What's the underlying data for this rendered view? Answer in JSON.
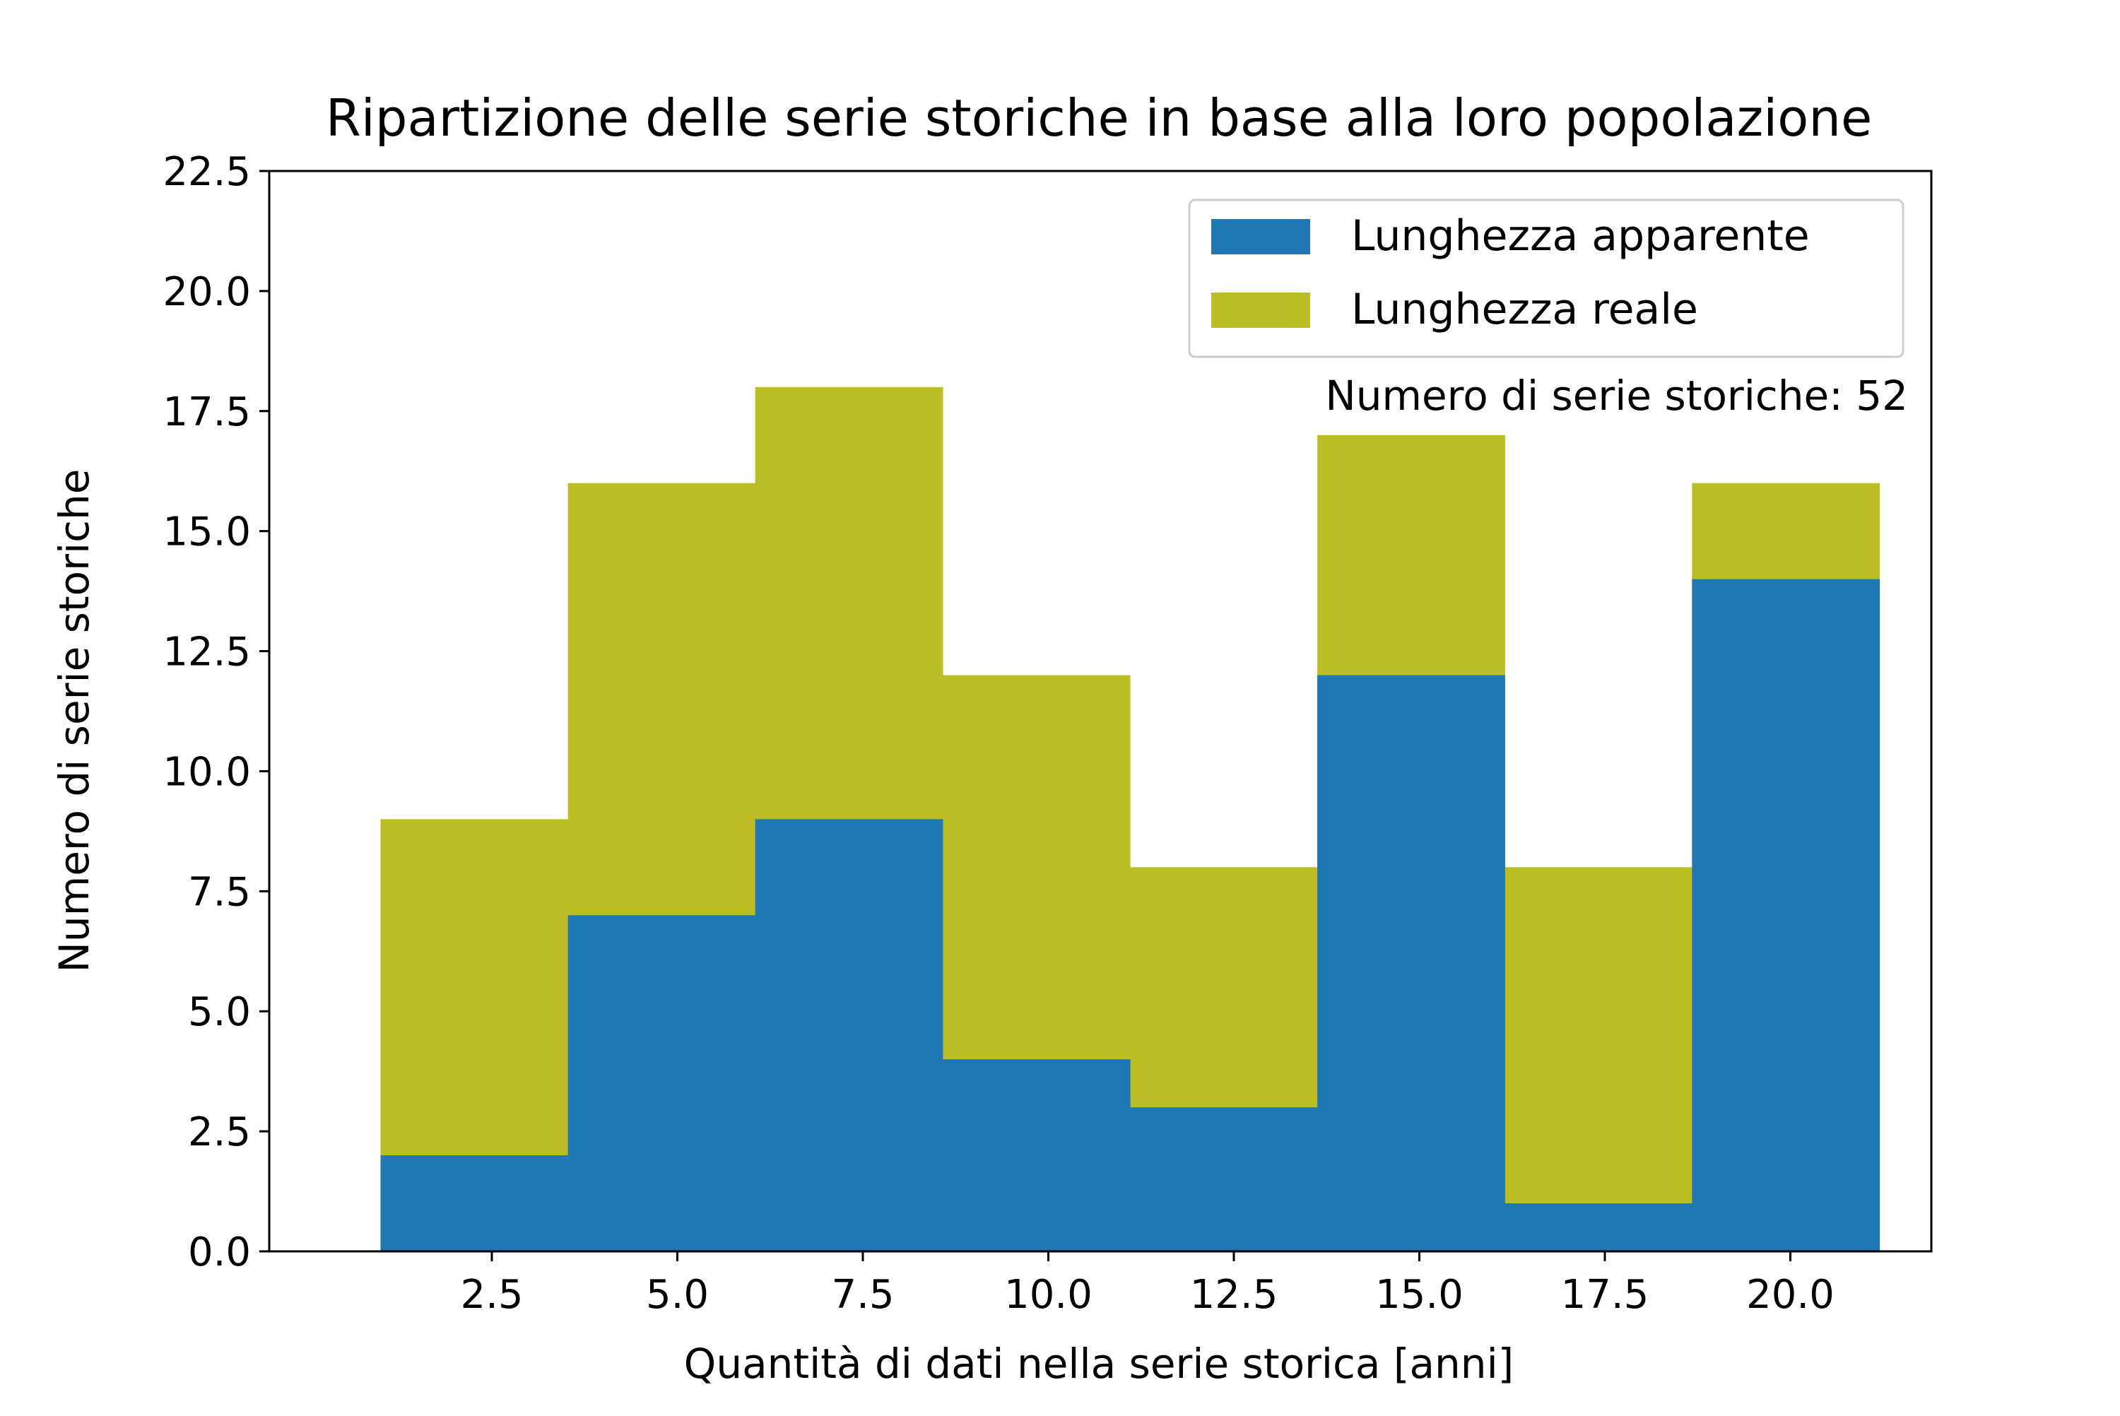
{
  "chart_data": {
    "type": "bar",
    "title": "Ripartizione delle serie storiche in base alla loro popolazione",
    "xlabel": "Quantità di dati nella serie storica [anni]",
    "ylabel": "Numero di serie storiche",
    "xlim": [
      -0.5,
      21.9
    ],
    "ylim": [
      0,
      22.5
    ],
    "x_ticks": [
      2.5,
      5.0,
      7.5,
      10.0,
      12.5,
      15.0,
      17.5,
      20.0
    ],
    "x_tick_labels": [
      "2.5",
      "5.0",
      "7.5",
      "10.0",
      "12.5",
      "15.0",
      "17.5",
      "20.0"
    ],
    "y_ticks": [
      0,
      2.5,
      5,
      7.5,
      10,
      12.5,
      15,
      17.5,
      20,
      22.5
    ],
    "y_tick_labels": [
      "0.0",
      "2.5",
      "5.0",
      "7.5",
      "10.0",
      "12.5",
      "15.0",
      "17.5",
      "20.0",
      "22.5"
    ],
    "bin_edges": [
      1.0,
      3.525,
      6.05,
      8.575,
      11.1,
      13.625,
      16.15,
      18.675,
      21.2
    ],
    "series": [
      {
        "name": "Lunghezza apparente",
        "color": "#1f77b4",
        "values": [
          2,
          7,
          9,
          4,
          3,
          12,
          1,
          14
        ]
      },
      {
        "name": "Lunghezza reale",
        "color": "#bcbd22",
        "values": [
          9,
          16,
          18,
          12,
          8,
          17,
          8,
          16
        ]
      }
    ],
    "legend_position": "top-right",
    "annotation": "Numero di serie storiche: 52",
    "grid": false
  }
}
